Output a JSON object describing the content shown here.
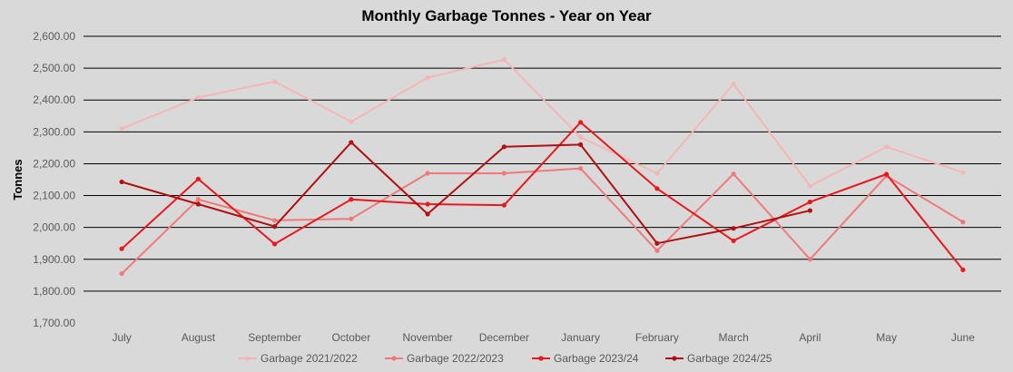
{
  "chart_data": {
    "type": "line",
    "title": "Monthly Garbage Tonnes - Year on Year",
    "xlabel": "",
    "ylabel": "Tonnes",
    "categories": [
      "July",
      "August",
      "September",
      "October",
      "November",
      "December",
      "January",
      "February",
      "March",
      "April",
      "May",
      "June"
    ],
    "yticks": [
      "1,700.00",
      "1,800.00",
      "1,900.00",
      "2,000.00",
      "2,100.00",
      "2,200.00",
      "2,300.00",
      "2,400.00",
      "2,500.00",
      "2,600.00"
    ],
    "ylim": [
      1700,
      2600
    ],
    "grid": true,
    "legend_position": "bottom",
    "series": [
      {
        "name": "Garbage 2021/2022",
        "color": "#f4b6b6",
        "values": [
          2310,
          2408,
          2458,
          2332,
          2470,
          2527,
          2283,
          2170,
          2450,
          2130,
          2253,
          2173
        ]
      },
      {
        "name": "Garbage 2022/2023",
        "color": "#f07a7a",
        "values": [
          1855,
          2088,
          2022,
          2027,
          2170,
          2170,
          2185,
          1927,
          2168,
          1900,
          2162,
          2017
        ]
      },
      {
        "name": "Garbage 2023/24",
        "color": "#e8181c",
        "values": [
          1933,
          2152,
          1948,
          2088,
          2073,
          2070,
          2330,
          2122,
          1958,
          2080,
          2167,
          1867
        ]
      },
      {
        "name": "Garbage 2024/25",
        "color": "#b01010",
        "values": [
          2143,
          2073,
          2003,
          2267,
          2042,
          2253,
          2260,
          1950,
          1997,
          2053,
          null,
          null
        ]
      }
    ]
  }
}
